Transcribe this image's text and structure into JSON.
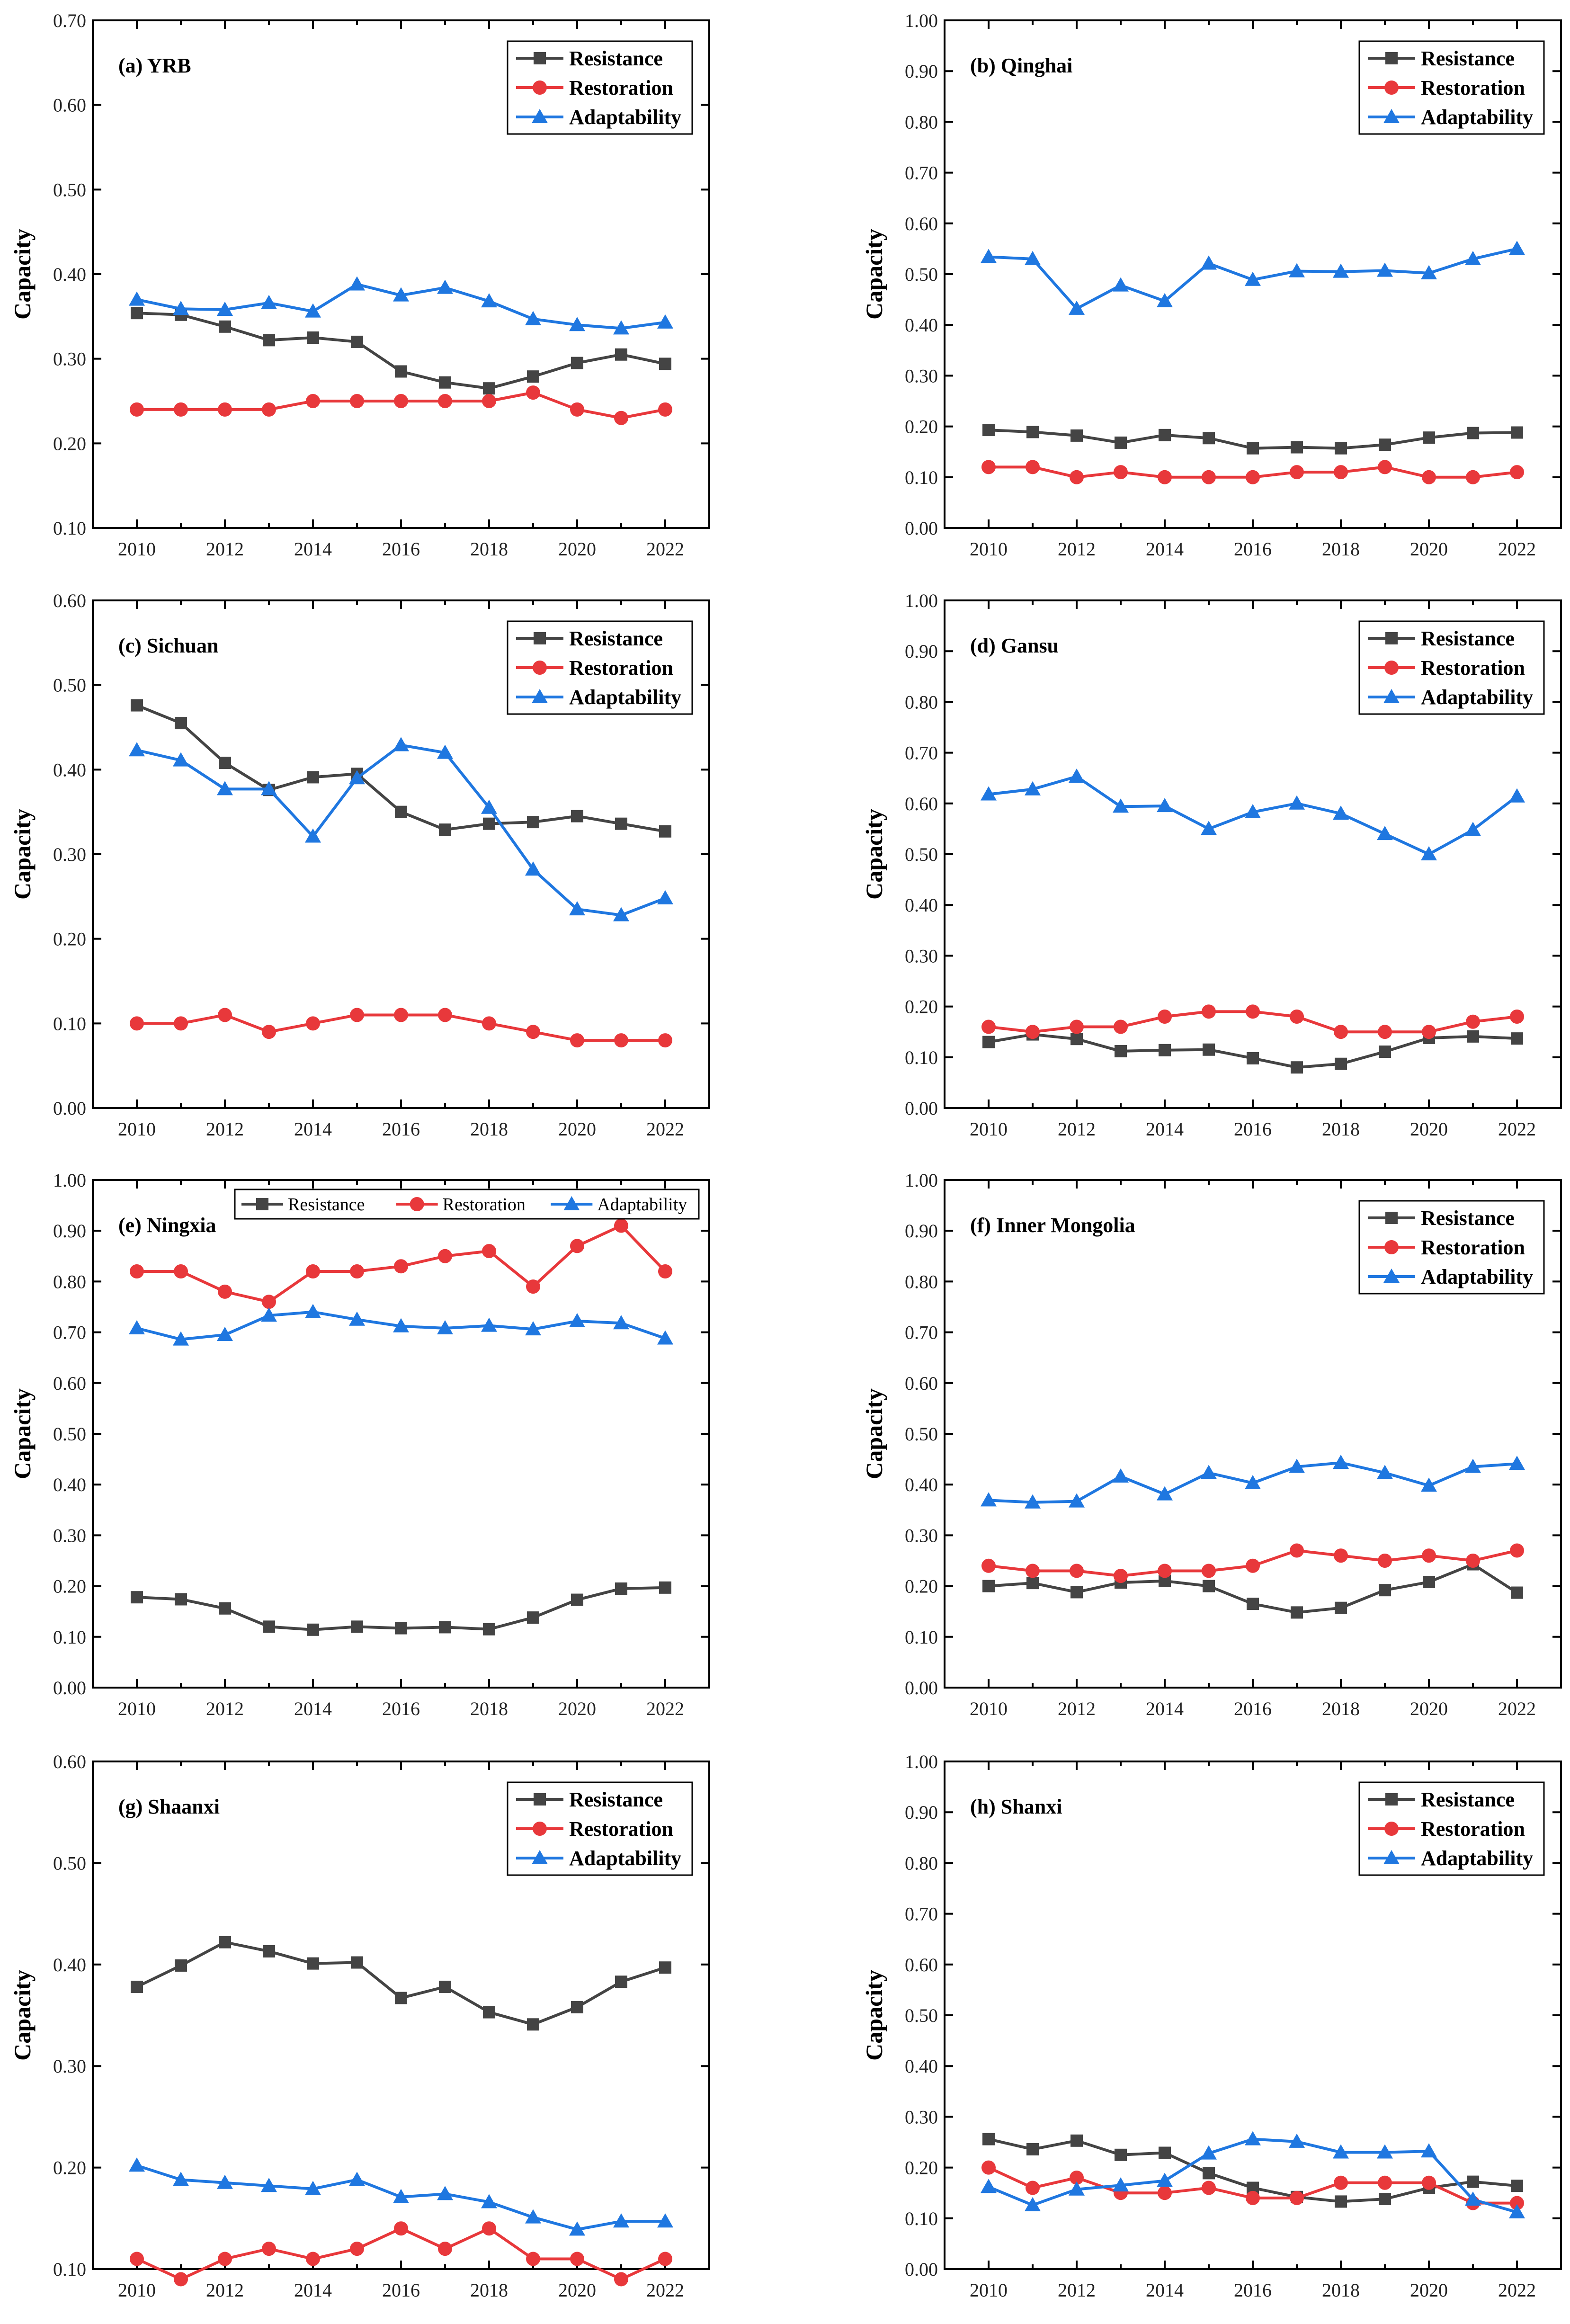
{
  "colors": {
    "Resistance": "#444444",
    "Restoration": "#e8383b",
    "Adaptability": "#1f77e0"
  },
  "chart_data": [
    {
      "type": "line",
      "title": "(a) YRB",
      "ylabel": "Capacity",
      "ylim": [
        0.1,
        0.7
      ],
      "yticks": [
        "0.10",
        "0.20",
        "0.30",
        "0.40",
        "0.50",
        "0.60",
        "0.70"
      ],
      "xlim": [
        2009,
        2023
      ],
      "xticks": [
        "2010",
        "2012",
        "2014",
        "2016",
        "2018",
        "2020",
        "2022"
      ],
      "legend_position": "top-right",
      "x": [
        2010,
        2011,
        2012,
        2013,
        2014,
        2015,
        2016,
        2017,
        2018,
        2019,
        2020,
        2021,
        2022
      ],
      "series": [
        {
          "name": "Resistance",
          "marker": "square",
          "values": [
            0.354,
            0.352,
            0.338,
            0.322,
            0.325,
            0.32,
            0.285,
            0.272,
            0.265,
            0.279,
            0.295,
            0.305,
            0.294
          ]
        },
        {
          "name": "Restoration",
          "marker": "circle",
          "values": [
            0.24,
            0.24,
            0.24,
            0.24,
            0.25,
            0.25,
            0.25,
            0.25,
            0.25,
            0.26,
            0.24,
            0.23,
            0.24
          ]
        },
        {
          "name": "Adaptability",
          "marker": "triangle",
          "values": [
            0.37,
            0.359,
            0.358,
            0.366,
            0.356,
            0.388,
            0.375,
            0.384,
            0.368,
            0.347,
            0.34,
            0.336,
            0.343
          ]
        }
      ]
    },
    {
      "type": "line",
      "title": "(b) Qinghai",
      "ylabel": "Capacity",
      "ylim": [
        0.0,
        1.0
      ],
      "yticks": [
        "0.00",
        "0.10",
        "0.20",
        "0.30",
        "0.40",
        "0.50",
        "0.60",
        "0.70",
        "0.80",
        "0.90",
        "1.00"
      ],
      "xlim": [
        2009,
        2023
      ],
      "xticks": [
        "2010",
        "2012",
        "2014",
        "2016",
        "2018",
        "2020",
        "2022"
      ],
      "legend_position": "top-right",
      "x": [
        2010,
        2011,
        2012,
        2013,
        2014,
        2015,
        2016,
        2017,
        2018,
        2019,
        2020,
        2021,
        2022
      ],
      "series": [
        {
          "name": "Resistance",
          "marker": "square",
          "values": [
            0.193,
            0.189,
            0.182,
            0.168,
            0.183,
            0.177,
            0.157,
            0.159,
            0.157,
            0.164,
            0.178,
            0.187,
            0.188
          ]
        },
        {
          "name": "Restoration",
          "marker": "circle",
          "values": [
            0.12,
            0.12,
            0.1,
            0.11,
            0.1,
            0.1,
            0.1,
            0.11,
            0.11,
            0.12,
            0.1,
            0.1,
            0.11
          ]
        },
        {
          "name": "Adaptability",
          "marker": "triangle",
          "values": [
            0.534,
            0.53,
            0.432,
            0.478,
            0.447,
            0.521,
            0.489,
            0.506,
            0.505,
            0.507,
            0.502,
            0.53,
            0.55
          ]
        }
      ]
    },
    {
      "type": "line",
      "title": "(c) Sichuan",
      "ylabel": "Capacity",
      "ylim": [
        0.0,
        0.6
      ],
      "yticks": [
        "0.00",
        "0.10",
        "0.20",
        "0.30",
        "0.40",
        "0.50",
        "0.60"
      ],
      "xlim": [
        2009,
        2023
      ],
      "xticks": [
        "2010",
        "2012",
        "2014",
        "2016",
        "2018",
        "2020",
        "2022"
      ],
      "legend_position": "top-right",
      "x": [
        2010,
        2011,
        2012,
        2013,
        2014,
        2015,
        2016,
        2017,
        2018,
        2019,
        2020,
        2021,
        2022
      ],
      "series": [
        {
          "name": "Resistance",
          "marker": "square",
          "values": [
            0.476,
            0.455,
            0.408,
            0.376,
            0.391,
            0.395,
            0.35,
            0.329,
            0.336,
            0.338,
            0.345,
            0.336,
            0.327
          ]
        },
        {
          "name": "Restoration",
          "marker": "circle",
          "values": [
            0.1,
            0.1,
            0.11,
            0.09,
            0.1,
            0.11,
            0.11,
            0.11,
            0.1,
            0.09,
            0.08,
            0.08,
            0.08
          ]
        },
        {
          "name": "Adaptability",
          "marker": "triangle",
          "values": [
            0.423,
            0.411,
            0.377,
            0.377,
            0.321,
            0.39,
            0.429,
            0.42,
            0.355,
            0.282,
            0.235,
            0.228,
            0.248
          ]
        }
      ]
    },
    {
      "type": "line",
      "title": "(d) Gansu",
      "ylabel": "Capacity",
      "ylim": [
        0.0,
        1.0
      ],
      "yticks": [
        "0.00",
        "0.10",
        "0.20",
        "0.30",
        "0.40",
        "0.50",
        "0.60",
        "0.70",
        "0.80",
        "0.90",
        "1.00"
      ],
      "xlim": [
        2009,
        2023
      ],
      "xticks": [
        "2010",
        "2012",
        "2014",
        "2016",
        "2018",
        "2020",
        "2022"
      ],
      "legend_position": "top-right",
      "x": [
        2010,
        2011,
        2012,
        2013,
        2014,
        2015,
        2016,
        2017,
        2018,
        2019,
        2020,
        2021,
        2022
      ],
      "series": [
        {
          "name": "Resistance",
          "marker": "square",
          "values": [
            0.13,
            0.145,
            0.136,
            0.112,
            0.114,
            0.115,
            0.098,
            0.08,
            0.087,
            0.111,
            0.138,
            0.141,
            0.137
          ]
        },
        {
          "name": "Restoration",
          "marker": "circle",
          "values": [
            0.16,
            0.15,
            0.16,
            0.16,
            0.18,
            0.19,
            0.19,
            0.18,
            0.15,
            0.15,
            0.15,
            0.17,
            0.18
          ]
        },
        {
          "name": "Adaptability",
          "marker": "triangle",
          "values": [
            0.618,
            0.628,
            0.653,
            0.594,
            0.595,
            0.55,
            0.583,
            0.6,
            0.58,
            0.54,
            0.5,
            0.548,
            0.614
          ]
        }
      ]
    },
    {
      "type": "line",
      "title": "(e) Ningxia",
      "ylabel": "Capacity",
      "ylim": [
        0.0,
        1.0
      ],
      "yticks": [
        "0.00",
        "0.10",
        "0.20",
        "0.30",
        "0.40",
        "0.50",
        "0.60",
        "0.70",
        "0.80",
        "0.90",
        "1.00"
      ],
      "xlim": [
        2009,
        2023
      ],
      "xticks": [
        "2010",
        "2012",
        "2014",
        "2016",
        "2018",
        "2020",
        "2022"
      ],
      "legend_position": "top-horizontal",
      "x": [
        2010,
        2011,
        2012,
        2013,
        2014,
        2015,
        2016,
        2017,
        2018,
        2019,
        2020,
        2021,
        2022
      ],
      "series": [
        {
          "name": "Resistance",
          "marker": "square",
          "values": [
            0.178,
            0.174,
            0.156,
            0.12,
            0.114,
            0.12,
            0.117,
            0.119,
            0.115,
            0.138,
            0.173,
            0.195,
            0.197
          ]
        },
        {
          "name": "Restoration",
          "marker": "circle",
          "values": [
            0.82,
            0.82,
            0.78,
            0.76,
            0.82,
            0.82,
            0.83,
            0.85,
            0.86,
            0.79,
            0.87,
            0.91,
            0.82
          ]
        },
        {
          "name": "Adaptability",
          "marker": "triangle",
          "values": [
            0.708,
            0.686,
            0.695,
            0.733,
            0.74,
            0.725,
            0.712,
            0.708,
            0.713,
            0.706,
            0.722,
            0.718,
            0.688
          ]
        }
      ]
    },
    {
      "type": "line",
      "title": "(f) Inner Mongolia",
      "ylabel": "Capacity",
      "ylim": [
        0.0,
        1.0
      ],
      "yticks": [
        "0.00",
        "0.10",
        "0.20",
        "0.30",
        "0.40",
        "0.50",
        "0.60",
        "0.70",
        "0.80",
        "0.90",
        "1.00"
      ],
      "xlim": [
        2009,
        2023
      ],
      "xticks": [
        "2010",
        "2012",
        "2014",
        "2016",
        "2018",
        "2020",
        "2022"
      ],
      "legend_position": "top-right",
      "x": [
        2010,
        2011,
        2012,
        2013,
        2014,
        2015,
        2016,
        2017,
        2018,
        2019,
        2020,
        2021,
        2022
      ],
      "series": [
        {
          "name": "Resistance",
          "marker": "square",
          "values": [
            0.2,
            0.206,
            0.188,
            0.207,
            0.21,
            0.2,
            0.165,
            0.148,
            0.157,
            0.192,
            0.208,
            0.243,
            0.187
          ]
        },
        {
          "name": "Restoration",
          "marker": "circle",
          "values": [
            0.24,
            0.23,
            0.23,
            0.22,
            0.23,
            0.23,
            0.24,
            0.27,
            0.26,
            0.25,
            0.26,
            0.25,
            0.27
          ]
        },
        {
          "name": "Adaptability",
          "marker": "triangle",
          "values": [
            0.369,
            0.365,
            0.367,
            0.416,
            0.381,
            0.423,
            0.403,
            0.435,
            0.443,
            0.423,
            0.398,
            0.435,
            0.441
          ]
        }
      ]
    },
    {
      "type": "line",
      "title": "(g) Shaanxi",
      "ylabel": "Capacity",
      "ylim": [
        0.1,
        0.6
      ],
      "yticks": [
        "0.10",
        "0.20",
        "0.30",
        "0.40",
        "0.50",
        "0.60"
      ],
      "xlim": [
        2009,
        2023
      ],
      "xticks": [
        "2010",
        "2012",
        "2014",
        "2016",
        "2018",
        "2020",
        "2022"
      ],
      "legend_position": "top-right",
      "x": [
        2010,
        2011,
        2012,
        2013,
        2014,
        2015,
        2016,
        2017,
        2018,
        2019,
        2020,
        2021,
        2022
      ],
      "series": [
        {
          "name": "Resistance",
          "marker": "square",
          "values": [
            0.378,
            0.399,
            0.422,
            0.413,
            0.401,
            0.402,
            0.367,
            0.378,
            0.353,
            0.341,
            0.358,
            0.383,
            0.397
          ]
        },
        {
          "name": "Restoration",
          "marker": "circle",
          "values": [
            0.11,
            0.09,
            0.11,
            0.12,
            0.11,
            0.12,
            0.14,
            0.12,
            0.14,
            0.11,
            0.11,
            0.09,
            0.11
          ]
        },
        {
          "name": "Adaptability",
          "marker": "triangle",
          "values": [
            0.202,
            0.188,
            0.185,
            0.182,
            0.179,
            0.188,
            0.171,
            0.174,
            0.166,
            0.151,
            0.139,
            0.147,
            0.147
          ]
        }
      ]
    },
    {
      "type": "line",
      "title": "(h) Shanxi",
      "ylabel": "Capacity",
      "ylim": [
        0.0,
        1.0
      ],
      "yticks": [
        "0.00",
        "0.10",
        "0.20",
        "0.30",
        "0.40",
        "0.50",
        "0.60",
        "0.70",
        "0.80",
        "0.90",
        "1.00"
      ],
      "xlim": [
        2009,
        2023
      ],
      "xticks": [
        "2010",
        "2012",
        "2014",
        "2016",
        "2018",
        "2020",
        "2022"
      ],
      "legend_position": "top-right",
      "x": [
        2010,
        2011,
        2012,
        2013,
        2014,
        2015,
        2016,
        2017,
        2018,
        2019,
        2020,
        2021,
        2022
      ],
      "series": [
        {
          "name": "Resistance",
          "marker": "square",
          "values": [
            0.256,
            0.236,
            0.253,
            0.225,
            0.229,
            0.189,
            0.16,
            0.142,
            0.133,
            0.138,
            0.16,
            0.172,
            0.164
          ]
        },
        {
          "name": "Restoration",
          "marker": "circle",
          "values": [
            0.2,
            0.16,
            0.18,
            0.15,
            0.15,
            0.16,
            0.14,
            0.14,
            0.17,
            0.17,
            0.17,
            0.13,
            0.13
          ]
        },
        {
          "name": "Adaptability",
          "marker": "triangle",
          "values": [
            0.162,
            0.126,
            0.157,
            0.165,
            0.174,
            0.228,
            0.256,
            0.251,
            0.23,
            0.23,
            0.232,
            0.137,
            0.112
          ]
        }
      ]
    }
  ]
}
